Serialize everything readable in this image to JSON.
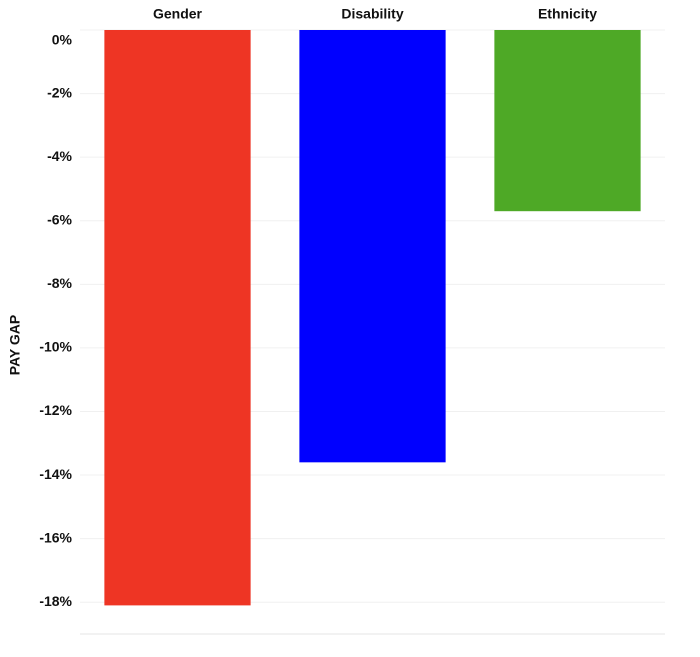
{
  "chart_data": {
    "type": "bar",
    "y_label": "PAY GAP",
    "categories": [
      "Gender",
      "Disability",
      "Ethnicity"
    ],
    "values": [
      -18.1,
      -13.6,
      -5.7
    ],
    "colors": [
      "#ee3524",
      "#0000ff",
      "#4ea926"
    ],
    "ylim": [
      -19,
      0
    ],
    "yticks": [
      {
        "value": 0,
        "label": "0%"
      },
      {
        "value": -2,
        "label": "-2%"
      },
      {
        "value": -4,
        "label": "-4%"
      },
      {
        "value": -6,
        "label": "-6%"
      },
      {
        "value": -8,
        "label": "-8%"
      },
      {
        "value": -10,
        "label": "-10%"
      },
      {
        "value": -12,
        "label": "-12%"
      },
      {
        "value": -14,
        "label": "-14%"
      },
      {
        "value": -16,
        "label": "-16%"
      },
      {
        "value": -18,
        "label": "-18%"
      }
    ],
    "grid": true
  }
}
